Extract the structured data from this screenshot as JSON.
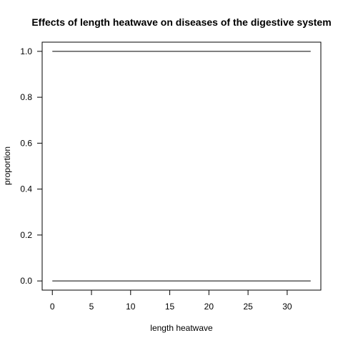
{
  "chart_data": {
    "type": "line",
    "title": "Effects of length heatwave on diseases of the digestive system",
    "xlabel": "length heatwave",
    "ylabel": "proportion",
    "xlim": [
      -1.3,
      34.3
    ],
    "ylim": [
      -0.04,
      1.04
    ],
    "xticks": [
      0,
      5,
      10,
      15,
      20,
      25,
      30
    ],
    "yticks": [
      0.0,
      0.2,
      0.4,
      0.6,
      0.8,
      1.0
    ],
    "ytick_labels": [
      "0.0",
      "0.2",
      "0.4",
      "0.6",
      "0.8",
      "1.0"
    ],
    "grid": false,
    "series": [
      {
        "x": [
          0,
          33
        ],
        "y": [
          1.0,
          1.0
        ]
      },
      {
        "x": [
          0,
          33
        ],
        "y": [
          0.0,
          0.0
        ]
      }
    ]
  }
}
